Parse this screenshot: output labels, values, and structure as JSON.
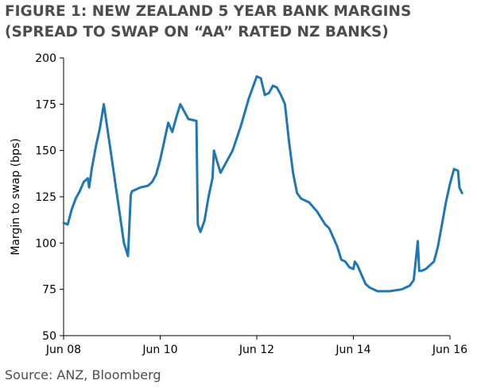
{
  "title_lines": [
    "FIGURE 1: NEW ZEALAND 5 YEAR BANK MARGINS",
    "(SPREAD TO SWAP ON “AA” RATED NZ BANKS)"
  ],
  "source": "Source: ANZ, Bloomberg",
  "chart_data": {
    "type": "line",
    "title": "FIGURE 1: NEW ZEALAND 5 YEAR BANK MARGINS (SPREAD TO SWAP ON “AA” RATED NZ BANKS)",
    "xlabel": "",
    "ylabel": "Margin to swap (bps)",
    "ylim": [
      50,
      200
    ],
    "yticks": [
      50,
      75,
      100,
      125,
      150,
      175,
      200
    ],
    "xticks": [
      "Jun 08",
      "Jun 10",
      "Jun 12",
      "Jun 14",
      "Jun 16"
    ],
    "xlim": [
      "Jun 08",
      "Jun 16"
    ],
    "grid": false,
    "color": "#1f77b4",
    "series": [
      {
        "name": "",
        "points": [
          [
            "Jun 2008",
            111
          ],
          [
            "Jul 2008",
            110
          ],
          [
            "Aug 2008",
            118
          ],
          [
            "Sep 2008",
            124
          ],
          [
            "Oct 2008",
            128
          ],
          [
            "Nov 2008",
            133
          ],
          [
            "Dec 2008",
            135
          ],
          [
            "Dec 2008",
            130
          ],
          [
            "Jan 2009",
            140
          ],
          [
            "Feb 2009",
            152
          ],
          [
            "Mar 2009",
            162
          ],
          [
            "Apr 2009",
            175
          ],
          [
            "May 2009",
            160
          ],
          [
            "Jun 2009",
            145
          ],
          [
            "Jul 2009",
            130
          ],
          [
            "Aug 2009",
            115
          ],
          [
            "Sep 2009",
            100
          ],
          [
            "Oct 2009",
            93
          ],
          [
            "Oct 2009",
            110
          ],
          [
            "Oct 2009",
            126
          ],
          [
            "Nov 2009",
            128
          ],
          [
            "Dec 2009",
            129
          ],
          [
            "Jan 2010",
            130
          ],
          [
            "Mar 2010",
            131
          ],
          [
            "Apr 2010",
            133
          ],
          [
            "May 2010",
            137
          ],
          [
            "Jun 2010",
            145
          ],
          [
            "Jul 2010",
            155
          ],
          [
            "Aug 2010",
            165
          ],
          [
            "Sep 2010",
            160
          ],
          [
            "Oct 2010",
            168
          ],
          [
            "Nov 2010",
            175
          ],
          [
            "Dec 2010",
            171
          ],
          [
            "Jan 2011",
            167
          ],
          [
            "Mar 2011",
            166
          ],
          [
            "Mar 2011",
            110
          ],
          [
            "Apr 2011",
            106
          ],
          [
            "May 2011",
            112
          ],
          [
            "Jun 2011",
            125
          ],
          [
            "Jul 2011",
            135
          ],
          [
            "Jul 2011",
            150
          ],
          [
            "Aug 2011",
            145
          ],
          [
            "Sep 2011",
            138
          ],
          [
            "Oct 2011",
            142
          ],
          [
            "Dec 2011",
            150
          ],
          [
            "Feb 2012",
            163
          ],
          [
            "Apr 2012",
            178
          ],
          [
            "Jun 2012",
            190
          ],
          [
            "Jul 2012",
            189
          ],
          [
            "Aug 2012",
            180
          ],
          [
            "Sep 2012",
            181
          ],
          [
            "Oct 2012",
            185
          ],
          [
            "Nov 2012",
            184
          ],
          [
            "Dec 2012",
            180
          ],
          [
            "Jan 2013",
            175
          ],
          [
            "Feb 2013",
            155
          ],
          [
            "Mar 2013",
            138
          ],
          [
            "Apr 2013",
            127
          ],
          [
            "May 2013",
            124
          ],
          [
            "Jul 2013",
            122
          ],
          [
            "Sep 2013",
            117
          ],
          [
            "Nov 2013",
            110
          ],
          [
            "Dec 2013",
            108
          ],
          [
            "Feb 2014",
            98
          ],
          [
            "Mar 2014",
            91
          ],
          [
            "Apr 2014",
            90
          ],
          [
            "May 2014",
            87
          ],
          [
            "Jun 2014",
            86
          ],
          [
            "Jun 2014",
            90
          ],
          [
            "Jul 2014",
            88
          ],
          [
            "Aug 2014",
            83
          ],
          [
            "Sep 2014",
            78
          ],
          [
            "Oct 2014",
            76
          ],
          [
            "Dec 2014",
            74
          ],
          [
            "Mar 2015",
            74
          ],
          [
            "Jun 2015",
            75
          ],
          [
            "Aug 2015",
            77
          ],
          [
            "Sep 2015",
            80
          ],
          [
            "Oct 2015",
            101
          ],
          [
            "Oct 2015",
            85
          ],
          [
            "Nov 2015",
            85
          ],
          [
            "Dec 2015",
            86
          ],
          [
            "Feb 2016",
            90
          ],
          [
            "Mar 2016",
            98
          ],
          [
            "Apr 2016",
            110
          ],
          [
            "May 2016",
            122
          ],
          [
            "Jun 2016",
            132
          ],
          [
            "Jul 2016",
            140
          ],
          [
            "Aug 2016",
            139
          ],
          [
            "Aug 2016",
            130
          ],
          [
            "Sep 2016",
            127
          ]
        ]
      }
    ]
  }
}
